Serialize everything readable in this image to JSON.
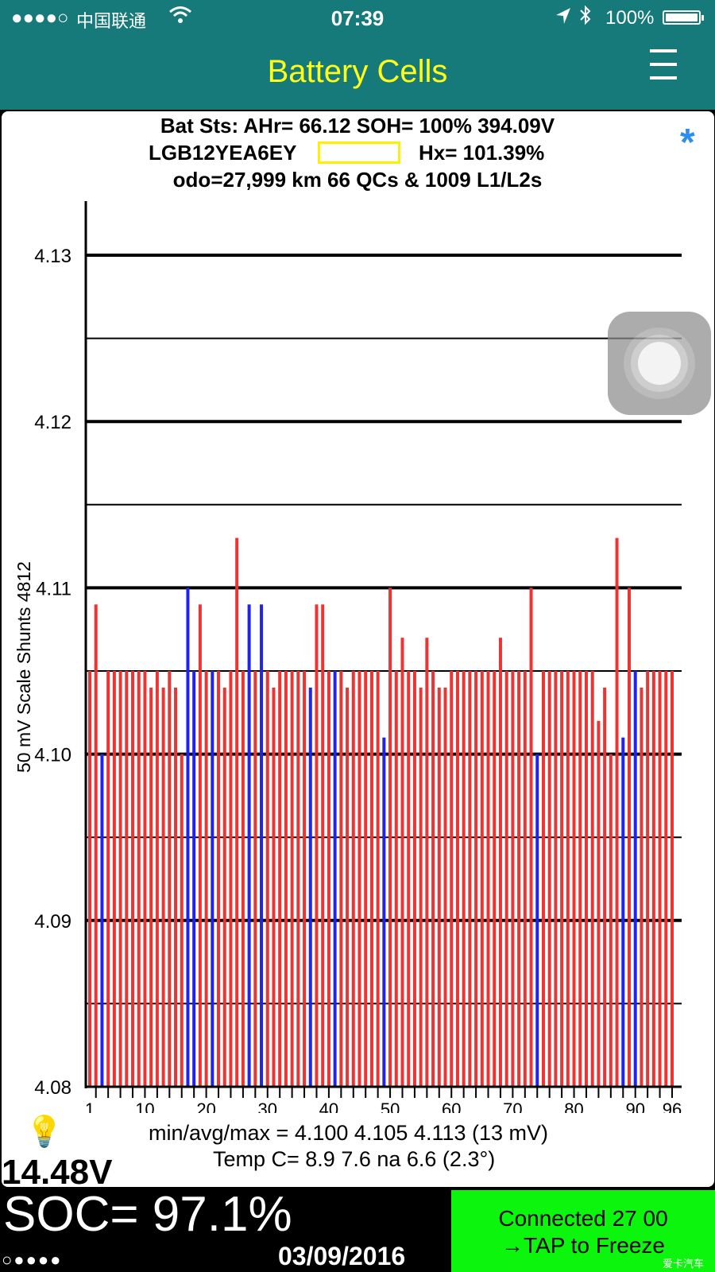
{
  "status_bar": {
    "signal": "●●●●○",
    "carrier": "中国联通",
    "time": "07:39",
    "battery_percent": "100%"
  },
  "nav": {
    "title": "Battery Cells"
  },
  "header": {
    "line1": "Bat Sts:  AHr= 66.12  SOH= 100%   394.09V",
    "vin": "LGB12YEA6EY",
    "hx": "Hx= 101.39%",
    "line3": "odo=27,999 km 66 QCs & 1009 L1/L2s"
  },
  "chart_data": {
    "type": "bar",
    "ylabel": "50 mV Scale   Shunts 4812",
    "ylim": [
      4.08,
      4.1335
    ],
    "y_ticks": [
      "4.13",
      "4.12",
      "4.11",
      "4.10",
      "4.09",
      "4.08"
    ],
    "x_ticks": [
      "1",
      "10",
      "20",
      "30",
      "40",
      "50",
      "60",
      "70",
      "80",
      "90",
      "96"
    ],
    "colors": {
      "normal": "#ee3333",
      "shunted": "#2222ee"
    },
    "categories": [
      1,
      2,
      3,
      4,
      5,
      6,
      7,
      8,
      9,
      10,
      11,
      12,
      13,
      14,
      15,
      16,
      17,
      18,
      19,
      20,
      21,
      22,
      23,
      24,
      25,
      26,
      27,
      28,
      29,
      30,
      31,
      32,
      33,
      34,
      35,
      36,
      37,
      38,
      39,
      40,
      41,
      42,
      43,
      44,
      45,
      46,
      47,
      48,
      49,
      50,
      51,
      52,
      53,
      54,
      55,
      56,
      57,
      58,
      59,
      60,
      61,
      62,
      63,
      64,
      65,
      66,
      67,
      68,
      69,
      70,
      71,
      72,
      73,
      74,
      75,
      76,
      77,
      78,
      79,
      80,
      81,
      82,
      83,
      84,
      85,
      86,
      87,
      88,
      89,
      90,
      91,
      92,
      93,
      94,
      95,
      96
    ],
    "values": [
      4.105,
      4.109,
      4.1,
      4.105,
      4.105,
      4.105,
      4.105,
      4.105,
      4.105,
      4.105,
      4.104,
      4.105,
      4.104,
      4.105,
      4.104,
      4.1,
      4.11,
      4.105,
      4.109,
      4.105,
      4.105,
      4.105,
      4.104,
      4.105,
      4.113,
      4.105,
      4.109,
      4.105,
      4.109,
      4.105,
      4.104,
      4.105,
      4.105,
      4.105,
      4.105,
      4.105,
      4.104,
      4.109,
      4.109,
      4.105,
      4.105,
      4.105,
      4.104,
      4.105,
      4.105,
      4.105,
      4.105,
      4.105,
      4.101,
      4.11,
      4.105,
      4.107,
      4.105,
      4.105,
      4.104,
      4.107,
      4.105,
      4.104,
      4.104,
      4.105,
      4.105,
      4.105,
      4.105,
      4.105,
      4.105,
      4.105,
      4.105,
      4.107,
      4.105,
      4.105,
      4.105,
      4.105,
      4.11,
      4.1,
      4.105,
      4.105,
      4.105,
      4.105,
      4.105,
      4.105,
      4.105,
      4.105,
      4.105,
      4.102,
      4.104,
      4.1,
      4.113,
      4.101,
      4.11,
      4.105,
      4.104,
      4.105,
      4.105,
      4.105,
      4.105,
      4.105
    ],
    "shunted_cells": [
      3,
      17,
      18,
      21,
      27,
      29,
      37,
      41,
      49,
      74,
      88,
      90
    ]
  },
  "stats": {
    "min_avg_max": "min/avg/max = 4.100 4.105 4.113  (13 mV)",
    "temp": "Temp C= 8.9  7.6  na  6.6  (2.3°)",
    "aux_voltage": "14.48V"
  },
  "bottom": {
    "soc": "SOC= 97.1%",
    "page_dots": "○●●●●",
    "date": "03/09/2016",
    "connect_line1": "Connected 27 00",
    "connect_line2": "→TAP to Freeze"
  },
  "watermark": "爱卡汽车"
}
